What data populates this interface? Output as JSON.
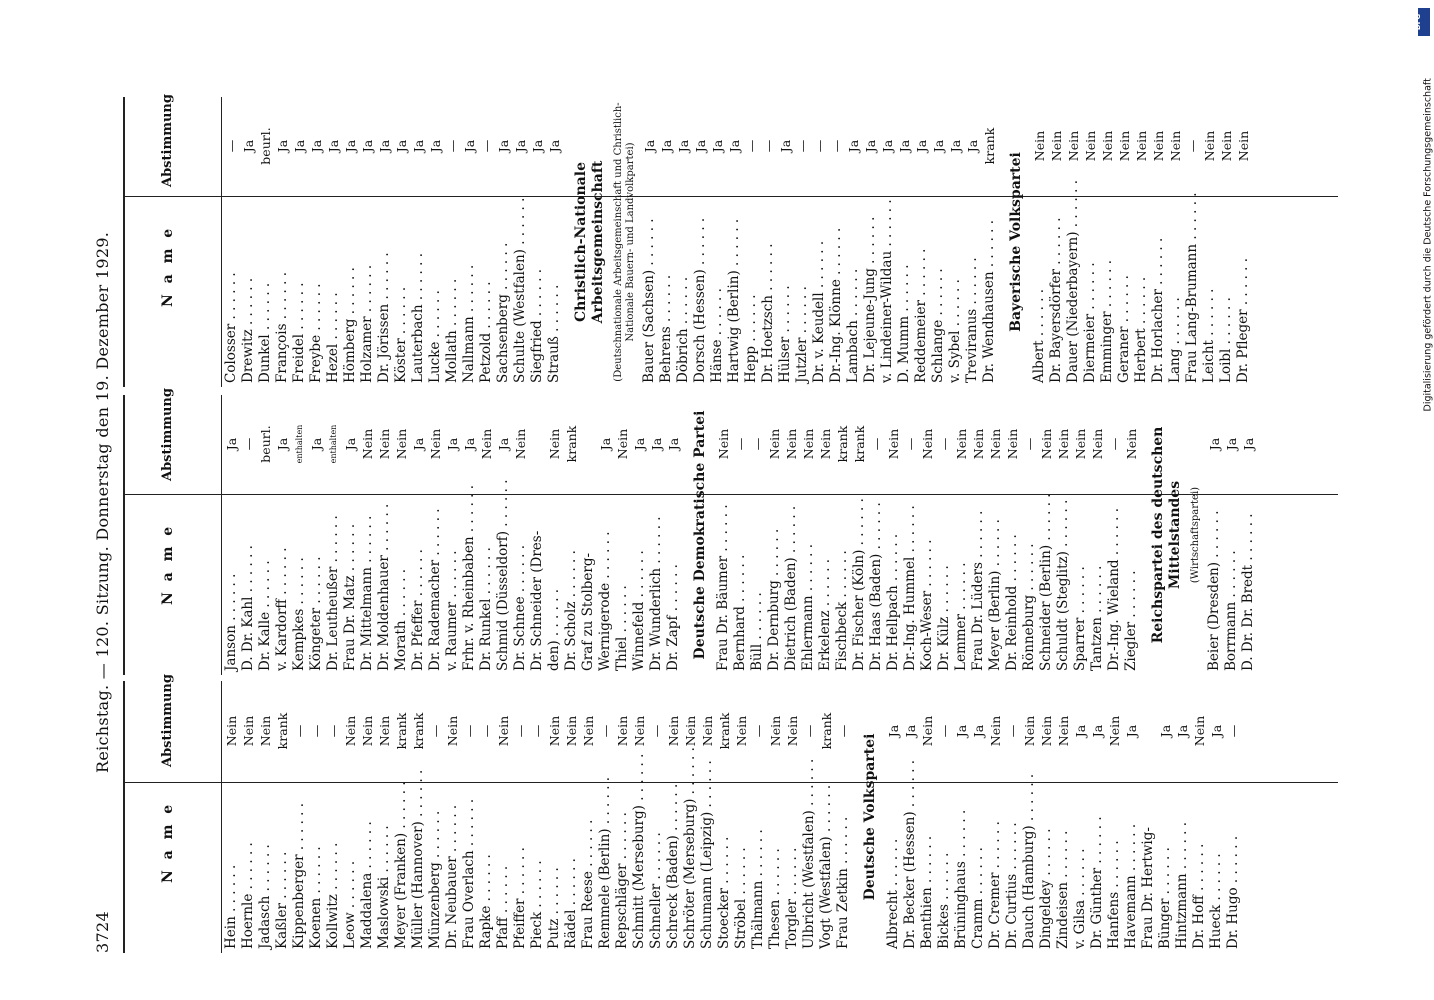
{
  "header": {
    "page_number": "3724",
    "title": "Reichstag. — 120. Sitzung. Donnerstag den 19. Dezember 1929."
  },
  "columns": {
    "name_header": "N a m e",
    "vote_header": "Abstimmung"
  },
  "watermark": "Digitalisierung gefördert durch die Deutsche Forschungsgemeinschaft",
  "dfg_logo": "DFG",
  "col1": {
    "rows1": [
      {
        "n": "Hein",
        "v": "Nein"
      },
      {
        "n": "Hoernle",
        "v": "Nein"
      },
      {
        "n": "Jadasch",
        "v": "Nein"
      },
      {
        "n": "Kaßler",
        "v": "krank"
      },
      {
        "n": "Kippenberger",
        "v": "—"
      },
      {
        "n": "Koenen",
        "v": "—"
      },
      {
        "n": "Kollwitz",
        "v": "—"
      },
      {
        "n": "Leow",
        "v": "Nein"
      },
      {
        "n": "Maddalena",
        "v": "Nein"
      },
      {
        "n": "Maslowski",
        "v": "Nein"
      },
      {
        "n": "Meyer (Franken)",
        "v": "krank"
      },
      {
        "n": "Müller (Hannover)",
        "v": "krank"
      },
      {
        "n": "Münzenberg",
        "v": "—"
      },
      {
        "n": "Dr. Neubauer",
        "v": "Nein"
      },
      {
        "n": "Frau Overlach",
        "v": "—"
      },
      {
        "n": "Rapke",
        "v": "—"
      },
      {
        "n": "Pfaff",
        "v": "Nein"
      },
      {
        "n": "Pfeiffer",
        "v": "—"
      },
      {
        "n": "Pieck",
        "v": "—"
      },
      {
        "n": "Putz",
        "v": "Nein"
      },
      {
        "n": "Rädel",
        "v": "Nein"
      },
      {
        "n": "Frau Reese",
        "v": "Nein"
      },
      {
        "n": "Remmele (Berlin)",
        "v": "—"
      },
      {
        "n": "Repschläger",
        "v": "Nein"
      },
      {
        "n": "Schmitt (Merseburg)",
        "v": "Nein"
      },
      {
        "n": "Schneller",
        "v": "—"
      },
      {
        "n": "Schreck (Baden)",
        "v": "Nein"
      },
      {
        "n": "Schröter (Merseburg)",
        "v": "Nein"
      },
      {
        "n": "Schumann (Leipzig)",
        "v": "Nein"
      },
      {
        "n": "Stoecker",
        "v": "krank"
      },
      {
        "n": "Ströbel",
        "v": "Nein"
      },
      {
        "n": "Thälmann",
        "v": "—"
      },
      {
        "n": "Thesen",
        "v": "Nein"
      },
      {
        "n": "Torgler",
        "v": "Nein"
      },
      {
        "n": "Ulbricht (Westfalen)",
        "v": "—"
      },
      {
        "n": "Vogt (Westfalen)",
        "v": "krank"
      },
      {
        "n": "Frau Zetkin",
        "v": "—"
      }
    ],
    "section": "Deutsche Volkspartei",
    "rows2": [
      {
        "n": "Albrecht",
        "v": "Ja"
      },
      {
        "n": "Dr. Becker (Hessen)",
        "v": "Ja"
      },
      {
        "n": "Benthien",
        "v": "Nein"
      },
      {
        "n": "Bickes",
        "v": "—"
      },
      {
        "n": "Brüninghaus",
        "v": "Ja"
      },
      {
        "n": "Cramm",
        "v": "Ja"
      },
      {
        "n": "Dr. Cremer",
        "v": "Nein"
      },
      {
        "n": "Dr. Curtius",
        "v": "—"
      },
      {
        "n": "Dauch (Hamburg)",
        "v": "Nein"
      },
      {
        "n": "Dingeldey",
        "v": "Nein"
      },
      {
        "n": "Zindeisen",
        "v": "Nein"
      },
      {
        "n": "v. Gilsa",
        "v": "Ja"
      },
      {
        "n": "Dr. Günther",
        "v": "Ja"
      },
      {
        "n": "Hanfens",
        "v": "Nein"
      },
      {
        "n": "Havemann",
        "v": "Ja"
      },
      {
        "n": "Frau Dr. Hertwig-",
        "v": ""
      },
      {
        "n": "   Bünger",
        "v": "Ja"
      },
      {
        "n": "Hintzmann",
        "v": "Ja"
      },
      {
        "n": "Dr. Hoff",
        "v": "Nein"
      },
      {
        "n": "Hueck",
        "v": "Ja"
      },
      {
        "n": "Dr. Hugo",
        "v": "—"
      }
    ]
  },
  "col2": {
    "rows1": [
      {
        "n": "Janson",
        "v": "Ja"
      },
      {
        "n": "D. Dr. Kahl",
        "v": "—"
      },
      {
        "n": "Dr. Kalle",
        "v": "beurl."
      },
      {
        "n": "v. Kardorff",
        "v": "Ja"
      },
      {
        "n": "Kempkes",
        "v": "enthalten"
      },
      {
        "n": "Köngeter",
        "v": "Ja"
      },
      {
        "n": "Dr. Leutheußer",
        "v": "enthalten"
      },
      {
        "n": "Frau Dr. Matz",
        "v": "Ja"
      },
      {
        "n": "Dr. Mittelmann",
        "v": "Nein"
      },
      {
        "n": "Dr. Moldenhauer",
        "v": "Nein"
      },
      {
        "n": "Morath",
        "v": "Nein"
      },
      {
        "n": "Dr. Pfeffer",
        "v": "Ja"
      },
      {
        "n": "Dr. Rademacher",
        "v": "Nein"
      },
      {
        "n": "v. Raumer",
        "v": "Ja"
      },
      {
        "n": "Frhr. v. Rheinbaben",
        "v": "Ja"
      },
      {
        "n": "Dr. Runkel",
        "v": "Nein"
      },
      {
        "n": "Schmid (Düsseldorf)",
        "v": "Ja"
      },
      {
        "n": "Dr. Schnee",
        "v": "Nein"
      },
      {
        "n": "Dr. Schneider (Dres-",
        "v": ""
      },
      {
        "n": "   den)",
        "v": "Nein"
      },
      {
        "n": "Dr. Scholz",
        "v": "krank"
      },
      {
        "n": "Graf zu Stolberg-",
        "v": ""
      },
      {
        "n": "   Wernigerode",
        "v": "Ja"
      },
      {
        "n": "Thiel",
        "v": "Nein"
      },
      {
        "n": "Winnefeld",
        "v": "Ja"
      },
      {
        "n": "Dr. Wunderlich",
        "v": "Ja"
      },
      {
        "n": "Dr. Zapf",
        "v": "Ja"
      }
    ],
    "section": "Deutsche Demokratische Partei",
    "rows2": [
      {
        "n": "Frau Dr. Bäumer",
        "v": "Nein"
      },
      {
        "n": "Bernhard",
        "v": "—"
      },
      {
        "n": "Büll",
        "v": "—"
      },
      {
        "n": "Dr. Dernburg",
        "v": "Nein"
      },
      {
        "n": "Dietrich (Baden)",
        "v": "Nein"
      },
      {
        "n": "Ehlermann",
        "v": "Nein"
      },
      {
        "n": "Erkelenz",
        "v": "Nein"
      },
      {
        "n": "Fischbeck",
        "v": "krank"
      },
      {
        "n": "Dr. Fischer (Köln)",
        "v": "krank"
      },
      {
        "n": "Dr. Haas (Baden)",
        "v": "—"
      },
      {
        "n": "Dr. Hellpach",
        "v": "Nein"
      },
      {
        "n": "Dr.-Ing. Hummel",
        "v": "—"
      },
      {
        "n": "Koch-Weser",
        "v": "Nein"
      },
      {
        "n": "Dr. Külz",
        "v": "—"
      },
      {
        "n": "Lemmer",
        "v": "Nein"
      },
      {
        "n": "Frau Dr. Lüders",
        "v": "Nein"
      },
      {
        "n": "Meyer (Berlin)",
        "v": "Nein"
      },
      {
        "n": "Dr. Reinhold",
        "v": "Nein"
      },
      {
        "n": "Rönneburg",
        "v": "—"
      },
      {
        "n": "Schneider (Berlin)",
        "v": "Nein"
      },
      {
        "n": "Schuldt (Steglitz)",
        "v": "Nein"
      },
      {
        "n": "Sparrer",
        "v": "Nein"
      },
      {
        "n": "Tantzen",
        "v": "Nein"
      },
      {
        "n": "Dr.-Ing. Wieland",
        "v": "—"
      },
      {
        "n": "Ziegler",
        "v": "Nein"
      }
    ],
    "section2": "Reichspartei des deutschen Mittelstandes",
    "section2_sub": "(Wirtschaftspartei)",
    "rows3": [
      {
        "n": "Beier (Dresden)",
        "v": "Ja"
      },
      {
        "n": "Borrmann",
        "v": "Ja"
      },
      {
        "n": "D. Dr. Dr. Bredt",
        "v": "Ja"
      }
    ]
  },
  "col3": {
    "rows1": [
      {
        "n": "Colosser",
        "v": "—"
      },
      {
        "n": "Drewitz",
        "v": "Ja"
      },
      {
        "n": "Dunkel",
        "v": "beurl."
      },
      {
        "n": "François",
        "v": "Ja"
      },
      {
        "n": "Freidel",
        "v": "Ja"
      },
      {
        "n": "Freybe",
        "v": "Ja"
      },
      {
        "n": "Hezel",
        "v": "Ja"
      },
      {
        "n": "Hömberg",
        "v": "Ja"
      },
      {
        "n": "Holzamer",
        "v": "Ja"
      },
      {
        "n": "Dr. Jörissen",
        "v": "Ja"
      },
      {
        "n": "Köster",
        "v": "Ja"
      },
      {
        "n": "Lauterbach",
        "v": "Ja"
      },
      {
        "n": "Lucke",
        "v": "Ja"
      },
      {
        "n": "Mollath",
        "v": "—"
      },
      {
        "n": "Nallmann",
        "v": "Ja"
      },
      {
        "n": "Petzold",
        "v": "—"
      },
      {
        "n": "Sachsenberg",
        "v": "Ja"
      },
      {
        "n": "Schulte (Westfalen)",
        "v": "Ja"
      },
      {
        "n": "Siegfried",
        "v": "Ja"
      },
      {
        "n": "Strauß",
        "v": "Ja"
      }
    ],
    "section": "Christlich-Nationale Arbeitsgemeinschaft",
    "section_sub": "(Deutschnationale Arbeitsgemeinschaft und Christlich-Nationale Bauern- und Landvolkpartei)",
    "rows2": [
      {
        "n": "Bauer (Sachsen)",
        "v": "Ja"
      },
      {
        "n": "Behrens",
        "v": "Ja"
      },
      {
        "n": "Döbrich",
        "v": "Ja"
      },
      {
        "n": "Dorsch (Hessen)",
        "v": "Ja"
      },
      {
        "n": "Hänse",
        "v": "Ja"
      },
      {
        "n": "Hartwig (Berlin)",
        "v": "Ja"
      },
      {
        "n": "Hepp",
        "v": "—"
      },
      {
        "n": "Dr. Hoetzsch",
        "v": "—"
      },
      {
        "n": "Hülser",
        "v": "Ja"
      },
      {
        "n": "Jutzler",
        "v": "—"
      },
      {
        "n": "Dr. v. Keudell",
        "v": "—"
      },
      {
        "n": "Dr.-Ing. Klönne",
        "v": "—"
      },
      {
        "n": "Lambach",
        "v": "Ja"
      },
      {
        "n": "Dr. Lejeune-Jung",
        "v": "Ja"
      },
      {
        "n": "v. Lindeiner-Wildau",
        "v": "Ja"
      },
      {
        "n": "D. Mumm",
        "v": "Ja"
      },
      {
        "n": "Reddemeier",
        "v": "Ja"
      },
      {
        "n": "Schlange",
        "v": "Ja"
      },
      {
        "n": "v. Sybel",
        "v": "Ja"
      },
      {
        "n": "Treviranus",
        "v": "Ja"
      },
      {
        "n": "Dr. Wendhausen",
        "v": "krank"
      }
    ],
    "section2": "Bayerische Volkspartei",
    "rows3": [
      {
        "n": "Albert",
        "v": "Nein"
      },
      {
        "n": "Dr. Bayersdörfer",
        "v": "Nein"
      },
      {
        "n": "Dauer (Niederbayern)",
        "v": "Nein"
      },
      {
        "n": "Diermeier",
        "v": "Nein"
      },
      {
        "n": "Emminger",
        "v": "Nein"
      },
      {
        "n": "Geraner",
        "v": "Nein"
      },
      {
        "n": "Herbert",
        "v": "Nein"
      },
      {
        "n": "Dr. Horlacher",
        "v": "Nein"
      },
      {
        "n": "Lang",
        "v": "Nein"
      },
      {
        "n": "Frau Lang-Brumann",
        "v": "—"
      },
      {
        "n": "Leicht",
        "v": "Nein"
      },
      {
        "n": "Loibl",
        "v": "Nein"
      },
      {
        "n": "Dr. Pfleger",
        "v": "Nein"
      }
    ]
  }
}
